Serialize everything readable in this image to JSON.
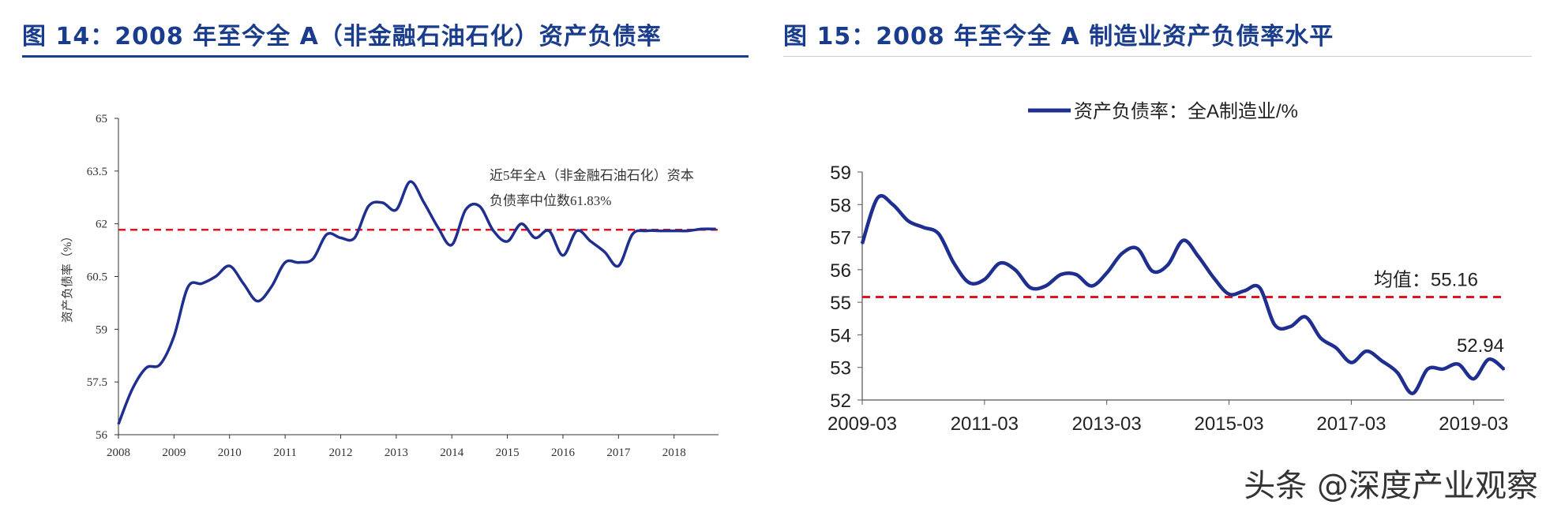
{
  "left_figure": {
    "title": "图 14：2008 年至今全 A（非金融石油石化）资产负债率"
  },
  "right_figure": {
    "title": "图 15：2008 年至今全 A 制造业资产负债率水平"
  },
  "watermark": "头条 @深度产业观察",
  "colors": {
    "title": "#1a3c8c",
    "line": "#1f2f8f",
    "reference": "#e0141e"
  },
  "chart_data": [
    {
      "type": "line",
      "title": "",
      "xlabel": "",
      "ylabel": "资产负债率（%）",
      "xlim": [
        2008,
        2018.8
      ],
      "ylim": [
        56,
        65
      ],
      "xticks": [
        "2008",
        "2009",
        "2010",
        "2011",
        "2012",
        "2013",
        "2014",
        "2015",
        "2016",
        "2017",
        "2018"
      ],
      "yticks": [
        "56",
        "57.5",
        "59",
        "60.5",
        "62",
        "63.5",
        "65"
      ],
      "reference_line": {
        "value": 61.83,
        "style": "dashed"
      },
      "annotation": [
        "近5年全A（非金融石油石化）资本",
        "负债率中位数61.83%"
      ],
      "series": [
        {
          "name": "资产负债率",
          "x": [
            2008.0,
            2008.25,
            2008.5,
            2008.75,
            2009.0,
            2009.25,
            2009.5,
            2009.75,
            2010.0,
            2010.25,
            2010.5,
            2010.75,
            2011.0,
            2011.25,
            2011.5,
            2011.75,
            2012.0,
            2012.25,
            2012.5,
            2012.75,
            2013.0,
            2013.25,
            2013.5,
            2013.75,
            2014.0,
            2014.25,
            2014.5,
            2014.75,
            2015.0,
            2015.25,
            2015.5,
            2015.75,
            2016.0,
            2016.25,
            2016.5,
            2016.75,
            2017.0,
            2017.25,
            2017.5,
            2017.75,
            2018.0,
            2018.25,
            2018.5,
            2018.75
          ],
          "values": [
            56.3,
            57.3,
            57.9,
            58.0,
            58.8,
            60.2,
            60.3,
            60.5,
            60.8,
            60.3,
            59.8,
            60.2,
            60.9,
            60.9,
            61.0,
            61.7,
            61.6,
            61.6,
            62.5,
            62.6,
            62.4,
            63.2,
            62.6,
            61.9,
            61.4,
            62.4,
            62.5,
            61.8,
            61.5,
            62.0,
            61.6,
            61.8,
            61.1,
            61.8,
            61.5,
            61.2,
            60.8,
            61.7,
            61.8,
            61.8,
            61.8,
            61.8,
            61.85,
            61.85
          ]
        }
      ]
    },
    {
      "type": "line",
      "title": "",
      "xlabel": "",
      "ylabel": "",
      "xlim": [
        "2009-03",
        "2019-09"
      ],
      "ylim": [
        52,
        59
      ],
      "xticks": [
        "2009-03",
        "2011-03",
        "2013-03",
        "2015-03",
        "2017-03",
        "2019-03"
      ],
      "yticks": [
        "52",
        "53",
        "54",
        "55",
        "56",
        "57",
        "58",
        "59"
      ],
      "legend": {
        "label": "资产负债率：全A制造业/%",
        "position": "top"
      },
      "reference_line": {
        "value": 55.16,
        "label": "均值：55.16",
        "style": "dashed"
      },
      "end_label": "52.94",
      "series": [
        {
          "name": "资产负债率：全A制造业/%",
          "values": [
            56.8,
            58.2,
            58.0,
            57.5,
            57.3,
            57.1,
            56.2,
            55.6,
            55.7,
            56.2,
            56.0,
            55.45,
            55.5,
            55.85,
            55.85,
            55.5,
            55.9,
            56.5,
            56.65,
            55.95,
            56.15,
            56.9,
            56.4,
            55.75,
            55.25,
            55.35,
            55.45,
            54.3,
            54.25,
            54.55,
            53.9,
            53.6,
            53.15,
            53.5,
            53.2,
            52.85,
            52.2,
            52.95,
            52.95,
            53.1,
            52.65,
            53.25,
            52.94
          ]
        }
      ]
    }
  ]
}
